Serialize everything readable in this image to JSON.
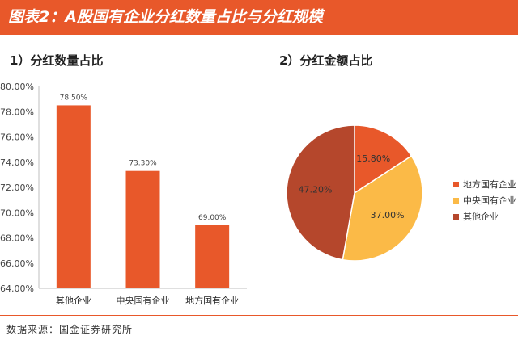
{
  "header": {
    "title": "图表2：A股国有企业分红数量占比与分红规模"
  },
  "source_text": "数据来源：国金证券研究所",
  "chart_data": [
    {
      "type": "bar",
      "title": "1）分红数量占比",
      "categories": [
        "其他企业",
        "中央国有企业",
        "地方国有企业"
      ],
      "values": [
        78.5,
        73.3,
        69.0
      ],
      "value_labels": [
        "78.50%",
        "73.30%",
        "69.00%"
      ],
      "ylim": [
        64,
        80
      ],
      "yticks": [
        "64.00%",
        "66.00%",
        "68.00%",
        "70.00%",
        "72.00%",
        "74.00%",
        "76.00%",
        "78.00%",
        "80.00%"
      ],
      "bar_color": "#e8582a",
      "grid": false
    },
    {
      "type": "pie",
      "title": "2）分红金额占比",
      "labels": [
        "地方国有企业",
        "中央国有企业",
        "其他企业"
      ],
      "values": [
        15.8,
        37.0,
        47.2
      ],
      "value_labels": [
        "15.80%",
        "37.00%",
        "47.20%"
      ],
      "colors": [
        "#e8582a",
        "#fbba47",
        "#b5472c"
      ],
      "legend_position": "right"
    }
  ]
}
